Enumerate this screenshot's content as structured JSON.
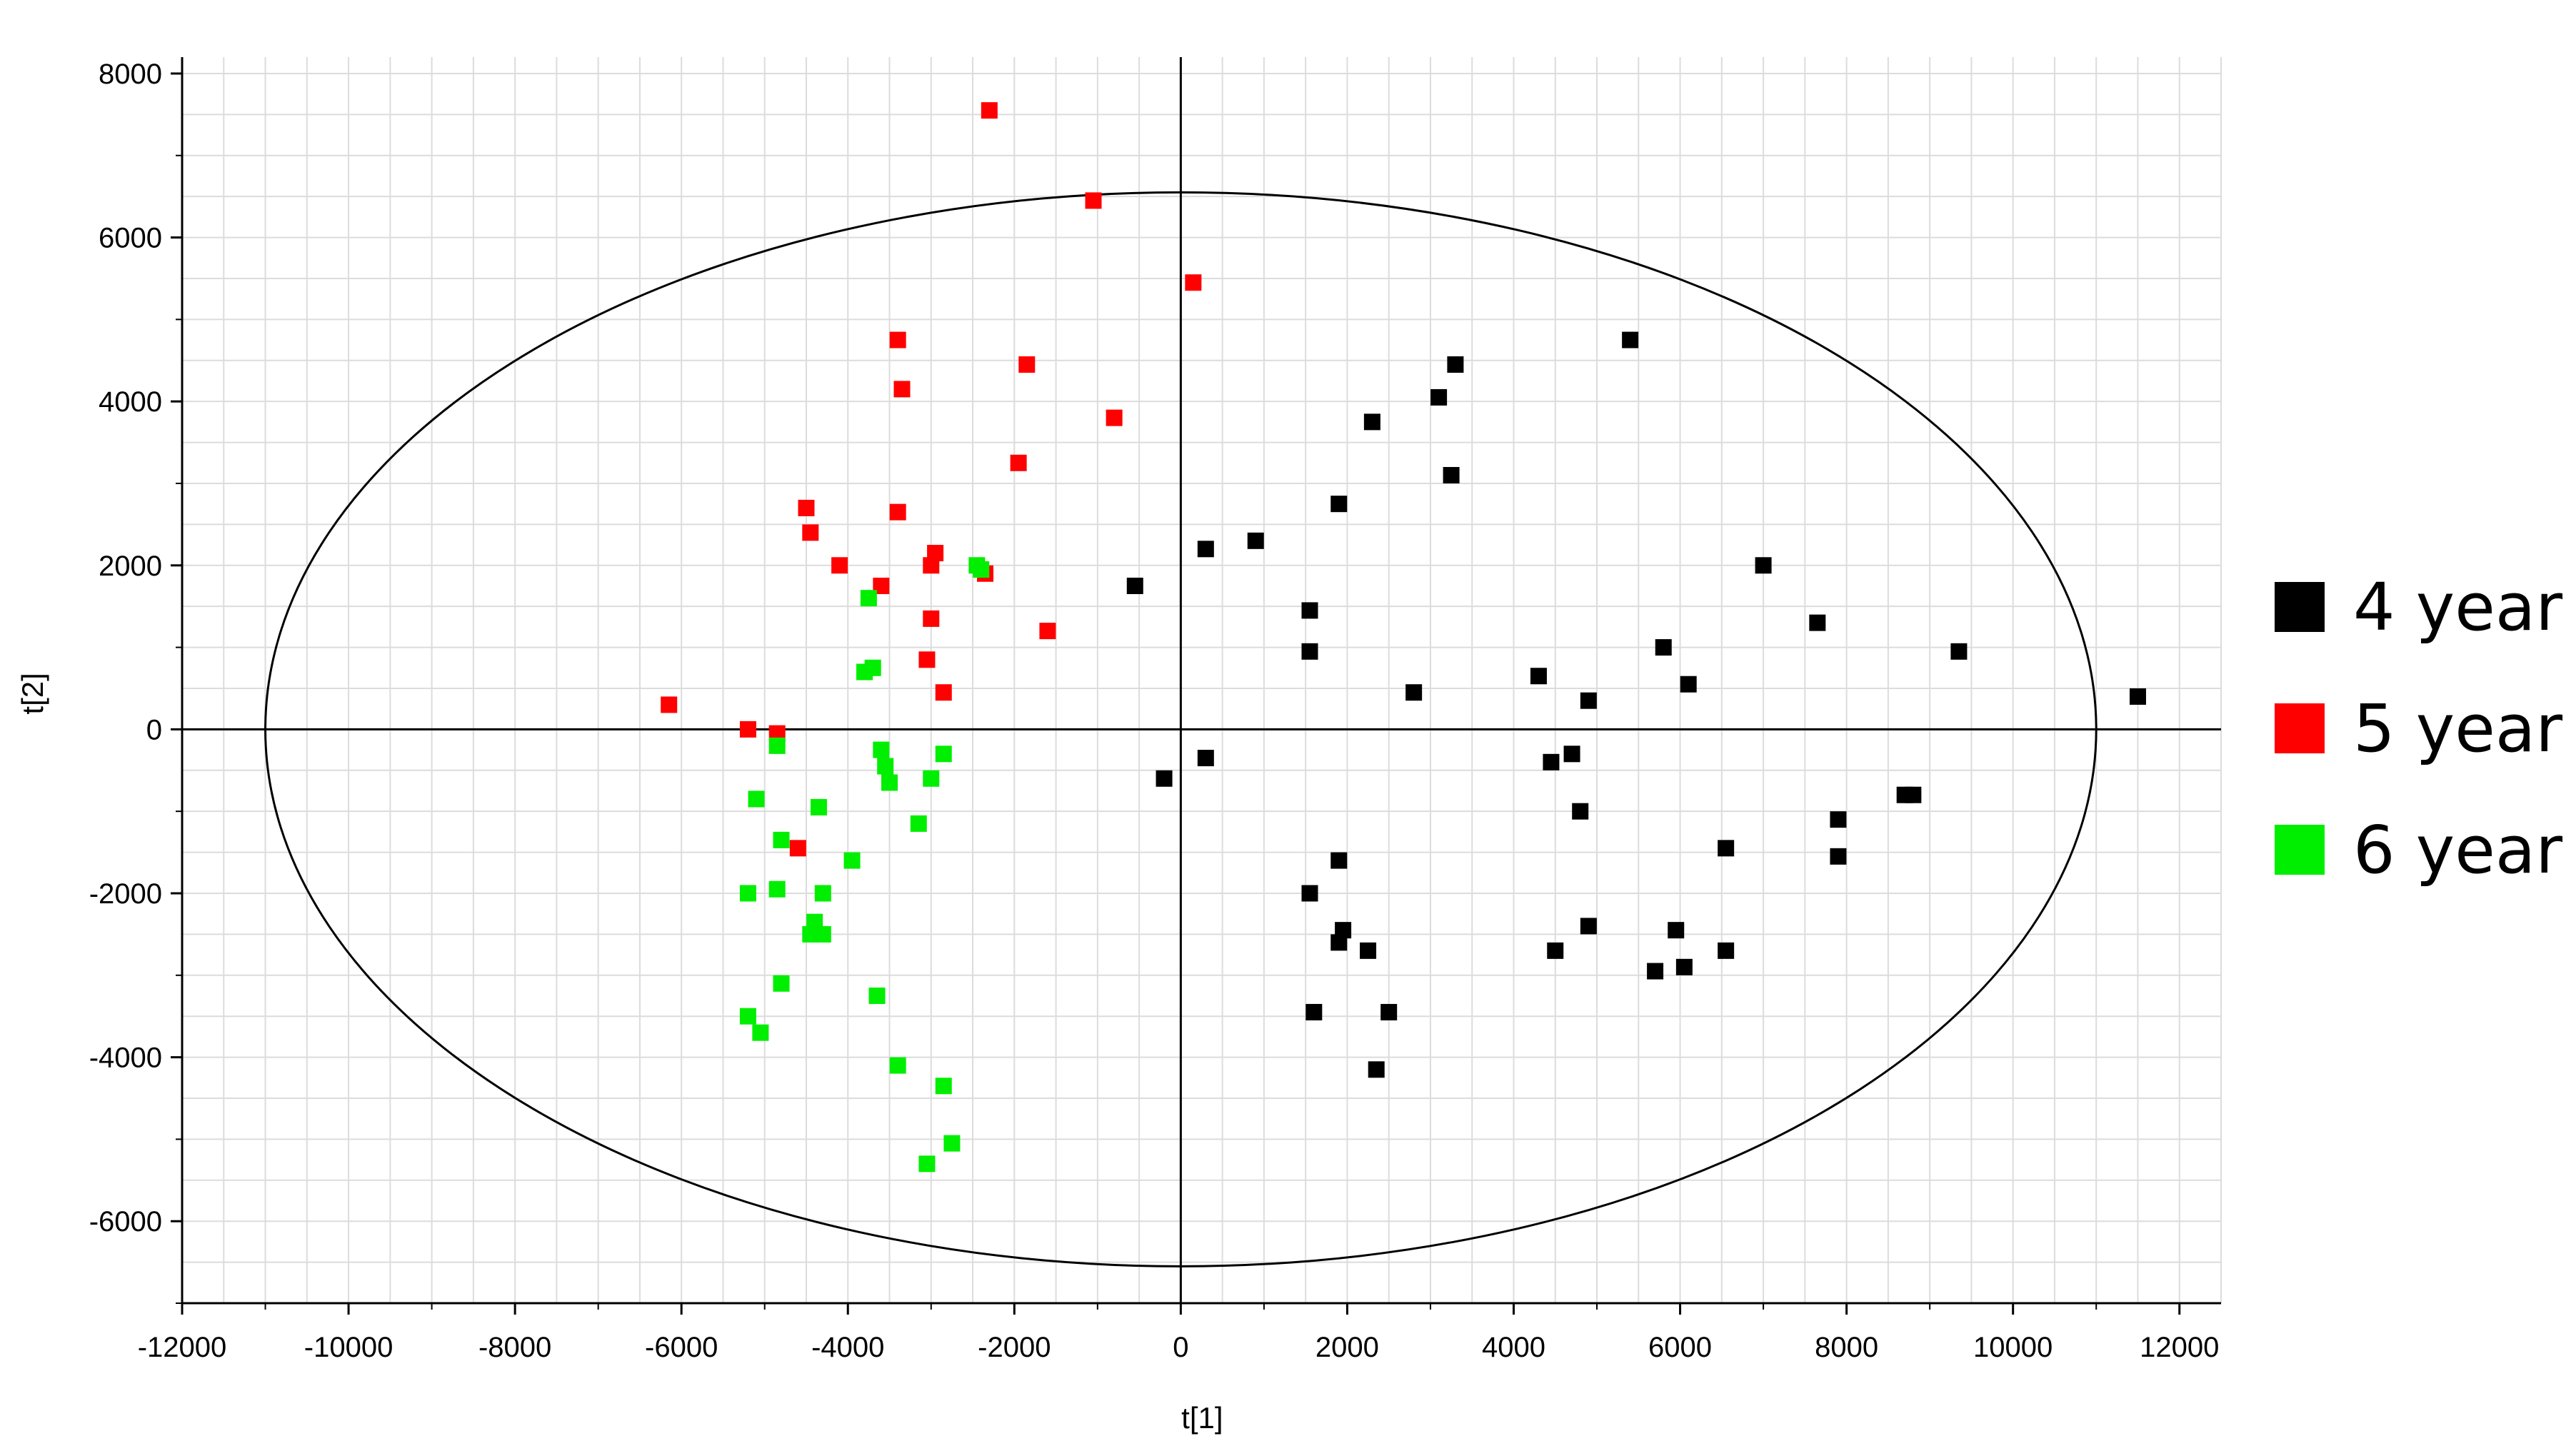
{
  "chart_data": {
    "type": "scatter",
    "title": "",
    "xlabel": "t[1]",
    "ylabel": "t[2]",
    "xlim": [
      -12000,
      12500
    ],
    "ylim": [
      -7000,
      8200
    ],
    "xticks": [
      -12000,
      -10000,
      -8000,
      -6000,
      -4000,
      -2000,
      0,
      2000,
      4000,
      6000,
      8000,
      10000,
      12000
    ],
    "yticks": [
      -6000,
      -4000,
      -2000,
      0,
      2000,
      4000,
      6000,
      8000
    ],
    "grid": true,
    "legend_position": "right",
    "confidence_ellipse": {
      "x_semi_axis": 11000,
      "y_semi_axis": 6550,
      "center": [
        0,
        0
      ]
    },
    "series": [
      {
        "name": "4 year",
        "color": "#000000",
        "points": [
          [
            5400,
            4750
          ],
          [
            3300,
            4450
          ],
          [
            3100,
            4050
          ],
          [
            2300,
            3750
          ],
          [
            3250,
            3100
          ],
          [
            1900,
            2750
          ],
          [
            900,
            2300
          ],
          [
            300,
            2200
          ],
          [
            -550,
            1750
          ],
          [
            7000,
            2000
          ],
          [
            7650,
            1300
          ],
          [
            9350,
            950
          ],
          [
            11500,
            400
          ],
          [
            1550,
            1450
          ],
          [
            1550,
            950
          ],
          [
            2800,
            450
          ],
          [
            4300,
            650
          ],
          [
            4900,
            350
          ],
          [
            5800,
            1000
          ],
          [
            6100,
            550
          ],
          [
            4450,
            -400
          ],
          [
            4700,
            -300
          ],
          [
            4800,
            -1000
          ],
          [
            8700,
            -800
          ],
          [
            8800,
            -800
          ],
          [
            7900,
            -1100
          ],
          [
            7900,
            -1550
          ],
          [
            6550,
            -1450
          ],
          [
            -200,
            -600
          ],
          [
            300,
            -350
          ],
          [
            1900,
            -1600
          ],
          [
            1550,
            -2000
          ],
          [
            1950,
            -2450
          ],
          [
            1900,
            -2600
          ],
          [
            2250,
            -2700
          ],
          [
            4500,
            -2700
          ],
          [
            4900,
            -2400
          ],
          [
            5950,
            -2450
          ],
          [
            6550,
            -2700
          ],
          [
            5700,
            -2950
          ],
          [
            6050,
            -2900
          ],
          [
            1600,
            -3450
          ],
          [
            2500,
            -3450
          ],
          [
            2350,
            -4150
          ]
        ]
      },
      {
        "name": "5 year",
        "color": "#ff0000",
        "points": [
          [
            -2300,
            7550
          ],
          [
            -1050,
            6450
          ],
          [
            150,
            5450
          ],
          [
            -3400,
            4750
          ],
          [
            -1850,
            4450
          ],
          [
            -3350,
            4150
          ],
          [
            -800,
            3800
          ],
          [
            -1950,
            3250
          ],
          [
            -4500,
            2700
          ],
          [
            -3400,
            2650
          ],
          [
            -4450,
            2400
          ],
          [
            -4100,
            2000
          ],
          [
            -2950,
            2150
          ],
          [
            -3000,
            2000
          ],
          [
            -2350,
            1900
          ],
          [
            -3600,
            1750
          ],
          [
            -3000,
            1350
          ],
          [
            -1600,
            1200
          ],
          [
            -3050,
            850
          ],
          [
            -2850,
            450
          ],
          [
            -6150,
            300
          ],
          [
            -5200,
            0
          ],
          [
            -4850,
            -50
          ],
          [
            -4600,
            -1450
          ]
        ]
      },
      {
        "name": "6 year",
        "color": "#00ee00",
        "points": [
          [
            -2450,
            2000
          ],
          [
            -2400,
            1950
          ],
          [
            -3750,
            1600
          ],
          [
            -3800,
            700
          ],
          [
            -3700,
            750
          ],
          [
            -4850,
            -200
          ],
          [
            -3600,
            -250
          ],
          [
            -3550,
            -450
          ],
          [
            -3500,
            -650
          ],
          [
            -2850,
            -300
          ],
          [
            -3000,
            -600
          ],
          [
            -5100,
            -850
          ],
          [
            -4350,
            -950
          ],
          [
            -3150,
            -1150
          ],
          [
            -4800,
            -1350
          ],
          [
            -3950,
            -1600
          ],
          [
            -4850,
            -1950
          ],
          [
            -5200,
            -2000
          ],
          [
            -4300,
            -2000
          ],
          [
            -4400,
            -2350
          ],
          [
            -4450,
            -2500
          ],
          [
            -4300,
            -2500
          ],
          [
            -4800,
            -3100
          ],
          [
            -3650,
            -3250
          ],
          [
            -5200,
            -3500
          ],
          [
            -5050,
            -3700
          ],
          [
            -3400,
            -4100
          ],
          [
            -2850,
            -4350
          ],
          [
            -2750,
            -5050
          ],
          [
            -3050,
            -5300
          ]
        ]
      }
    ]
  }
}
